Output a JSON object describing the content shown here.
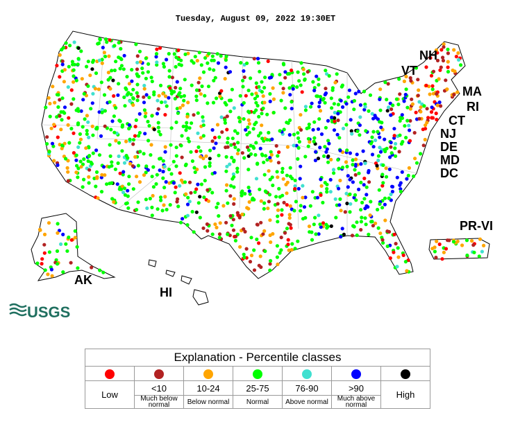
{
  "title": "Tuesday, August 09, 2022 19:30ET",
  "map_labels": {
    "states": [
      "NH",
      "VT",
      "MA",
      "RI",
      "CT",
      "NJ",
      "DE",
      "MD",
      "DC"
    ],
    "regions": [
      "AK",
      "HI",
      "PR-VI"
    ]
  },
  "logo": "USGS",
  "legend": {
    "title": "Explanation - Percentile classes",
    "classes": [
      {
        "color": "#ff0000",
        "label": "Low"
      },
      {
        "color": "#b22222",
        "range": "<10",
        "description": "Much below normal"
      },
      {
        "color": "#ffa500",
        "range": "10-24",
        "description": "Below normal"
      },
      {
        "color": "#00ff00",
        "range": "25-75",
        "description": "Normal"
      },
      {
        "color": "#40e0d0",
        "range": "76-90",
        "description": "Above normal"
      },
      {
        "color": "#0000ff",
        "range": ">90",
        "description": "Much above normal"
      },
      {
        "color": "#000000",
        "label": "High"
      }
    ]
  }
}
